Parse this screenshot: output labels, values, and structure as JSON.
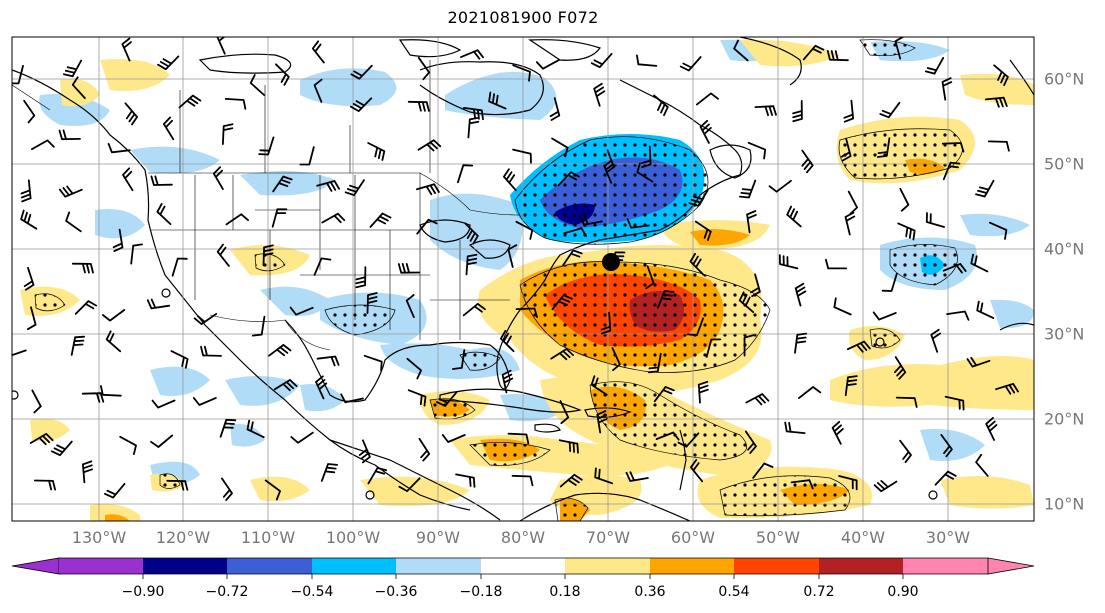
{
  "title": "2021081900 F072",
  "longitude_labels": [
    "130°W",
    "120°W",
    "110°W",
    "100°W",
    "90°W",
    "80°W",
    "70°W",
    "60°W",
    "50°W",
    "40°W",
    "30°W"
  ],
  "latitude_labels": [
    "60°N",
    "50°N",
    "40°N",
    "30°N",
    "20°N",
    "10°N"
  ],
  "colorbar": {
    "labels": [
      "−0.90",
      "−0.72",
      "−0.54",
      "−0.36",
      "−0.18",
      "0.18",
      "0.36",
      "0.54",
      "0.72",
      "0.90"
    ],
    "colors": [
      "#9b30d0",
      "#00008b",
      "#3a5fd6",
      "#00bfff",
      "#b0dcf8",
      "#ffffff",
      "#ffe88a",
      "#ffa500",
      "#ff4500",
      "#b22222",
      "#ff85b0"
    ]
  },
  "colors": {
    "ocean": "#ffffff",
    "coastline": "#000000",
    "gridline": "#999999",
    "marker": "#000000"
  },
  "marker": {
    "label": "storm-center",
    "lon": -70.5,
    "lat": 38.3
  }
}
